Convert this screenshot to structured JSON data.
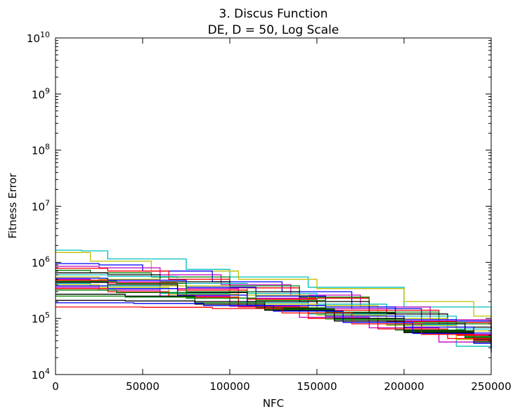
{
  "chart_data": {
    "type": "line",
    "title": "3.   Discus Function",
    "subtitle": "DE, D = 50, Log Scale",
    "xlabel": "NFC",
    "ylabel": "Fitness Error",
    "x_scale": "linear",
    "y_scale": "log",
    "xlim": [
      0,
      250000
    ],
    "ylim": [
      10000,
      10000000000
    ],
    "x_ticks": [
      0,
      50000,
      100000,
      150000,
      200000,
      250000
    ],
    "x_tick_labels": [
      "0",
      "50000",
      "100000",
      "150000",
      "200000",
      "250000"
    ],
    "y_ticks": [
      10000,
      100000,
      1000000,
      10000000,
      100000000,
      1000000000,
      10000000000
    ],
    "y_tick_labels": [
      {
        "base": "10",
        "exp": "4"
      },
      {
        "base": "10",
        "exp": "5"
      },
      {
        "base": "10",
        "exp": "6"
      },
      {
        "base": "10",
        "exp": "7"
      },
      {
        "base": "10",
        "exp": "8"
      },
      {
        "base": "10",
        "exp": "9"
      },
      {
        "base": "10",
        "exp": "10"
      }
    ],
    "grid": false,
    "series": [
      {
        "color": "#00bfbf",
        "x": [
          0,
          15000,
          30000,
          75000,
          100000,
          145000,
          200000,
          250000
        ],
        "y": [
          1650000,
          1600000,
          1150000,
          750000,
          550000,
          360000,
          160000,
          105000
        ]
      },
      {
        "color": "#bfbf00",
        "x": [
          0,
          20000,
          55000,
          105000,
          150000,
          200000,
          240000,
          250000
        ],
        "y": [
          1500000,
          1050000,
          700000,
          500000,
          340000,
          200000,
          110000,
          72000
        ]
      },
      {
        "color": "#0000ff",
        "x": [
          0,
          25000,
          50000,
          90000,
          130000,
          170000,
          210000,
          250000
        ],
        "y": [
          950000,
          900000,
          700000,
          450000,
          300000,
          150000,
          90000,
          60000
        ]
      },
      {
        "color": "#bf00bf",
        "x": [
          0,
          25000,
          60000,
          95000,
          135000,
          175000,
          215000,
          250000
        ],
        "y": [
          850000,
          800000,
          600000,
          400000,
          260000,
          160000,
          95000,
          65000
        ]
      },
      {
        "color": "#ff0000",
        "x": [
          0,
          30000,
          65000,
          100000,
          140000,
          180000,
          220000,
          250000
        ],
        "y": [
          780000,
          700000,
          500000,
          350000,
          230000,
          140000,
          85000,
          55000
        ]
      },
      {
        "color": "#008000",
        "x": [
          0,
          20000,
          55000,
          100000,
          140000,
          180000,
          220000,
          250000
        ],
        "y": [
          720000,
          650000,
          550000,
          380000,
          240000,
          130000,
          80000,
          50000
        ]
      },
      {
        "color": "#000000",
        "x": [
          0,
          30000,
          60000,
          100000,
          140000,
          180000,
          225000,
          250000
        ],
        "y": [
          650000,
          600000,
          450000,
          300000,
          200000,
          120000,
          70000,
          45000
        ]
      },
      {
        "color": "#00bfbf",
        "x": [
          0,
          30000,
          70000,
          110000,
          150000,
          190000,
          230000,
          250000
        ],
        "y": [
          600000,
          560000,
          420000,
          280000,
          180000,
          110000,
          65000,
          42000
        ]
      },
      {
        "color": "#bfbf00",
        "x": [
          0,
          25000,
          60000,
          100000,
          145000,
          185000,
          225000,
          250000
        ],
        "y": [
          550000,
          500000,
          380000,
          260000,
          170000,
          100000,
          60000,
          40000
        ]
      },
      {
        "color": "#0000ff",
        "x": [
          0,
          30000,
          75000,
          115000,
          155000,
          195000,
          230000,
          250000
        ],
        "y": [
          520000,
          480000,
          360000,
          250000,
          160000,
          95000,
          55000,
          35000
        ]
      },
      {
        "color": "#bf00bf",
        "x": [
          0,
          20000,
          60000,
          105000,
          145000,
          190000,
          230000,
          250000
        ],
        "y": [
          500000,
          450000,
          340000,
          230000,
          150000,
          90000,
          52000,
          33000
        ]
      },
      {
        "color": "#ff0000",
        "x": [
          0,
          30000,
          70000,
          110000,
          150000,
          190000,
          230000,
          250000
        ],
        "y": [
          480000,
          430000,
          320000,
          220000,
          140000,
          88000,
          50000,
          31000
        ]
      },
      {
        "color": "#008000",
        "x": [
          0,
          35000,
          75000,
          115000,
          155000,
          195000,
          235000,
          250000
        ],
        "y": [
          460000,
          420000,
          300000,
          210000,
          130000,
          85000,
          48000,
          38000
        ]
      },
      {
        "color": "#000000",
        "x": [
          0,
          30000,
          70000,
          110000,
          150000,
          195000,
          235000,
          250000
        ],
        "y": [
          440000,
          400000,
          290000,
          200000,
          125000,
          80000,
          45000,
          24000
        ]
      },
      {
        "color": "#00bfbf",
        "x": [
          0,
          20000,
          60000,
          100000,
          145000,
          190000,
          230000,
          250000
        ],
        "y": [
          420000,
          380000,
          280000,
          190000,
          120000,
          78000,
          32000,
          28000
        ]
      },
      {
        "color": "#bfbf00",
        "x": [
          0,
          25000,
          65000,
          105000,
          150000,
          190000,
          230000,
          250000
        ],
        "y": [
          400000,
          360000,
          270000,
          180000,
          115000,
          75000,
          42000,
          30000
        ]
      },
      {
        "color": "#0000ff",
        "x": [
          0,
          30000,
          70000,
          110000,
          155000,
          200000,
          240000,
          250000
        ],
        "y": [
          380000,
          340000,
          260000,
          170000,
          110000,
          70000,
          40000,
          26000
        ]
      },
      {
        "color": "#bf00bf",
        "x": [
          0,
          25000,
          60000,
          100000,
          140000,
          180000,
          220000,
          250000
        ],
        "y": [
          360000,
          320000,
          250000,
          165000,
          105000,
          68000,
          38000,
          34000
        ]
      },
      {
        "color": "#ff0000",
        "x": [
          0,
          30000,
          65000,
          105000,
          145000,
          185000,
          225000,
          250000
        ],
        "y": [
          340000,
          300000,
          240000,
          160000,
          100000,
          65000,
          44000,
          36000
        ]
      },
      {
        "color": "#008000",
        "x": [
          0,
          35000,
          75000,
          115000,
          155000,
          195000,
          235000,
          250000
        ],
        "y": [
          320000,
          290000,
          230000,
          155000,
          98000,
          62000,
          46000,
          39000
        ]
      },
      {
        "color": "#000000",
        "x": [
          0,
          40000,
          80000,
          120000,
          160000,
          200000,
          240000,
          250000
        ],
        "y": [
          270000,
          250000,
          200000,
          150000,
          100000,
          60000,
          42000,
          37000
        ]
      },
      {
        "color": "#008000",
        "x": [
          0,
          40000,
          80000,
          120000,
          160000,
          200000,
          240000,
          250000
        ],
        "y": [
          250000,
          240000,
          190000,
          145000,
          95000,
          58000,
          40000,
          35000
        ]
      },
      {
        "color": "#000000",
        "x": [
          0,
          40000,
          80000,
          120000,
          160000,
          200000,
          240000,
          250000
        ],
        "y": [
          210000,
          205000,
          180000,
          140000,
          90000,
          56000,
          38000,
          30000
        ]
      },
      {
        "color": "#0000ff",
        "x": [
          0,
          45000,
          85000,
          125000,
          165000,
          205000,
          240000,
          250000
        ],
        "y": [
          190000,
          185000,
          170000,
          135000,
          85000,
          54000,
          36000,
          29000
        ]
      },
      {
        "color": "#ff0000",
        "x": [
          0,
          50000,
          90000,
          130000,
          170000,
          210000,
          240000,
          250000
        ],
        "y": [
          160000,
          158000,
          150000,
          125000,
          80000,
          52000,
          41000,
          33000
        ]
      }
    ]
  }
}
